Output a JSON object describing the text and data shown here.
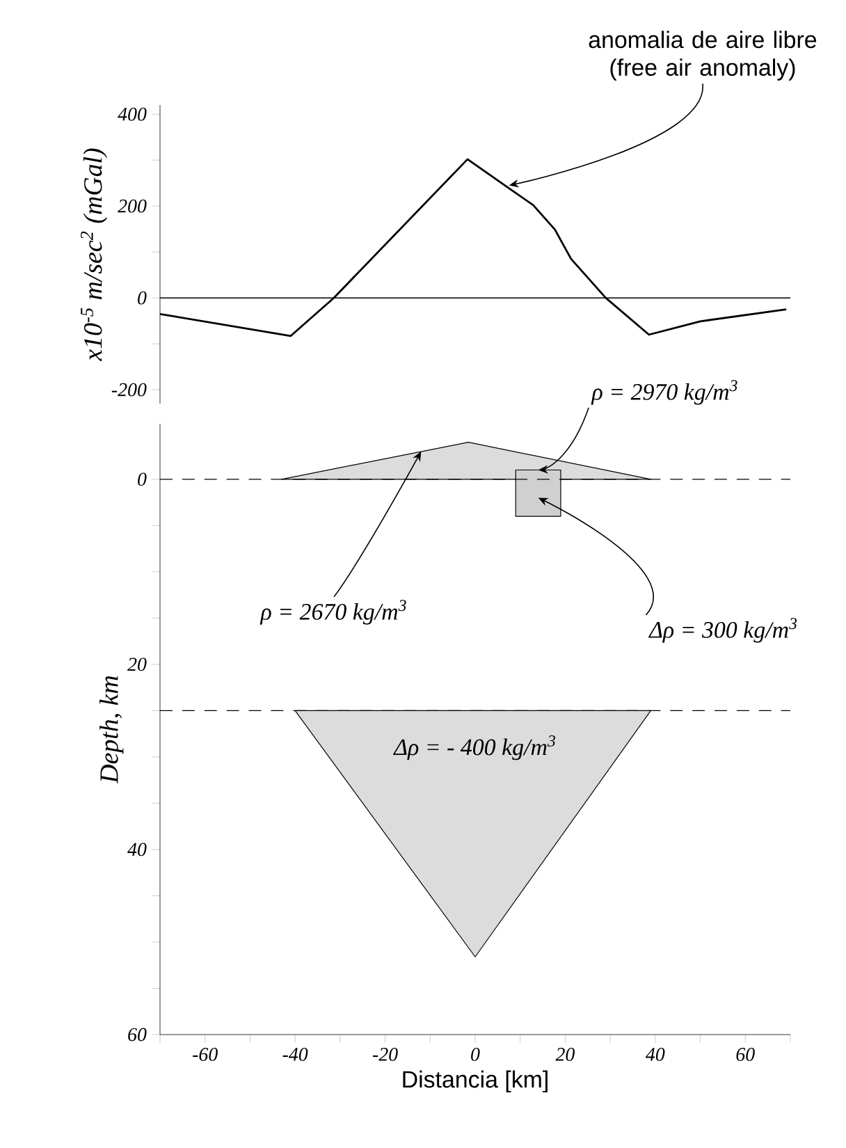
{
  "chart_data": [
    {
      "type": "line",
      "ylabel": "x10$^{-5}$ m/sec$^{2}$  (mGal)",
      "xlim": [
        -70,
        70
      ],
      "ylim": [
        -230,
        420
      ],
      "yticks": [
        -200,
        {
          "value": -100,
          "label": null
        },
        0,
        {
          "value": 100,
          "label": null
        },
        200,
        {
          "value": 300,
          "label": null
        },
        400
      ],
      "tick_labels": "y",
      "grid": false,
      "x": [
        -70,
        -41,
        -31.4,
        -1.7,
        6.9,
        12.9,
        17.7,
        21.3,
        29,
        38.6,
        50,
        69.1
      ],
      "series": [
        {
          "color": "#000000",
          "values": [
            -35,
            -83,
            0,
            302,
            243,
            202,
            149,
            85,
            0,
            -80,
            -51,
            -25
          ]
        }
      ],
      "ref_lines": [
        {
          "axis": "y",
          "value": 0,
          "line_style": "solid"
        }
      ],
      "annotations": [
        "anomalia de aire libre (free air anomaly)"
      ]
    },
    {
      "type": "area",
      "xlabel": "Distancia [km]",
      "ylabel": "Depth, km",
      "xlim": [
        -70,
        70
      ],
      "ylim": [
        60,
        -6
      ],
      "xticks": [
        {
          "value": -70,
          "label": null
        },
        -60,
        {
          "value": -50,
          "label": null
        },
        -40,
        {
          "value": -30,
          "label": null
        },
        -20,
        {
          "value": -10,
          "label": null
        },
        0,
        {
          "value": 10,
          "label": null
        },
        20,
        {
          "value": 30,
          "label": null
        },
        40,
        {
          "value": 50,
          "label": null
        },
        60,
        {
          "value": 70,
          "label": null
        }
      ],
      "yticks": [
        0,
        {
          "value": 5,
          "label": null
        },
        {
          "value": 10,
          "label": null
        },
        {
          "value": 15,
          "label": null
        },
        20,
        {
          "value": 25,
          "label": null
        },
        {
          "value": 30,
          "label": null
        },
        {
          "value": 35,
          "label": null
        },
        40,
        {
          "value": 45,
          "label": null
        },
        {
          "value": 50,
          "label": null
        },
        {
          "value": 55,
          "label": null
        },
        60
      ],
      "grid": false,
      "series": [
        {
          "color": "#dcdcdc",
          "x": [
            -43,
            -1.5,
            39
          ],
          "values": [
            0,
            -4,
            0
          ]
        },
        {
          "color": "#d0d0d0",
          "x": [
            9,
            19,
            19,
            9
          ],
          "values": [
            -1,
            -1,
            4,
            4
          ]
        },
        {
          "color": "#dcdcdc",
          "x": [
            -40,
            39,
            0
          ],
          "values": [
            25,
            25,
            51.6
          ]
        }
      ],
      "ref_lines": [
        {
          "axis": "y",
          "value": 0,
          "line_style": "dashed"
        },
        {
          "axis": "y",
          "value": 25,
          "line_style": "dashed"
        }
      ],
      "annotations": [
        {
          "text": "ρ = 2970 kg/m$^{3}$",
          "x": 14,
          "y": -1
        },
        {
          "text": "ρ = 2670 kg/m$^{3}$",
          "x": -12,
          "y": -3
        },
        "Δρ = 300 kg/m$^{3}$",
        "Δρ = - 400 kg/m$^{3}$"
      ]
    }
  ]
}
